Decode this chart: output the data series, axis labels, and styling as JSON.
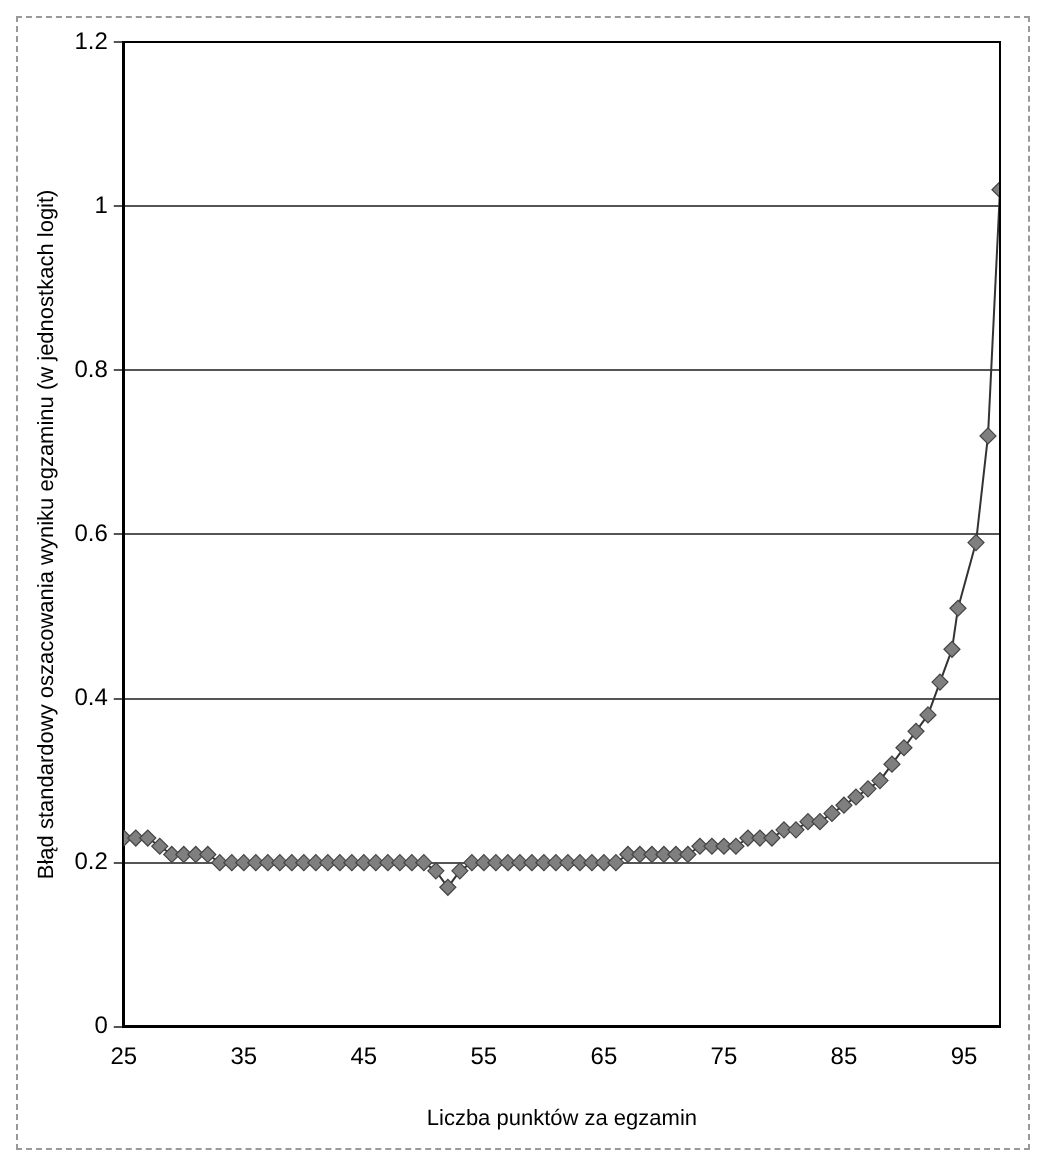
{
  "chart_data": {
    "type": "line",
    "xlabel": "Liczba punktów za egzamin",
    "ylabel": "Błąd standardowy oszacowania wyniku egzaminu (w jednostkach logit)",
    "x": [
      25,
      26,
      27,
      28,
      29,
      30,
      31,
      32,
      33,
      34,
      35,
      36,
      37,
      38,
      39,
      40,
      41,
      42,
      43,
      44,
      45,
      46,
      47,
      48,
      49,
      50,
      51,
      52,
      53,
      54,
      55,
      56,
      57,
      58,
      59,
      60,
      61,
      62,
      63,
      64,
      65,
      66,
      67,
      68,
      69,
      70,
      71,
      72,
      73,
      74,
      75,
      76,
      77,
      78,
      79,
      80,
      81,
      82,
      83,
      84,
      85,
      86,
      87,
      88,
      89,
      90,
      91,
      92,
      93,
      94,
      94.5,
      96,
      97,
      98
    ],
    "series": [
      {
        "color": "#7f7f7f",
        "values": [
          0.23,
          0.23,
          0.23,
          0.22,
          0.21,
          0.21,
          0.21,
          0.21,
          0.2,
          0.2,
          0.2,
          0.2,
          0.2,
          0.2,
          0.2,
          0.2,
          0.2,
          0.2,
          0.2,
          0.2,
          0.2,
          0.2,
          0.2,
          0.2,
          0.2,
          0.2,
          0.19,
          0.17,
          0.19,
          0.2,
          0.2,
          0.2,
          0.2,
          0.2,
          0.2,
          0.2,
          0.2,
          0.2,
          0.2,
          0.2,
          0.2,
          0.2,
          0.21,
          0.21,
          0.21,
          0.21,
          0.21,
          0.21,
          0.22,
          0.22,
          0.22,
          0.22,
          0.23,
          0.23,
          0.23,
          0.24,
          0.24,
          0.25,
          0.25,
          0.26,
          0.27,
          0.28,
          0.29,
          0.3,
          0.32,
          0.34,
          0.36,
          0.38,
          0.42,
          0.46,
          0.51,
          0.59,
          0.72,
          1.02
        ]
      }
    ],
    "xlim": [
      25,
      98
    ],
    "xticks": [
      25,
      35,
      45,
      55,
      65,
      75,
      85,
      95
    ],
    "ylim": [
      0,
      1.2
    ],
    "yticks": [
      0,
      0.2,
      0.4,
      0.6,
      0.8,
      1,
      1.2
    ],
    "grid": "y",
    "marker": "diamond",
    "line_style": "solid",
    "legend": false
  }
}
